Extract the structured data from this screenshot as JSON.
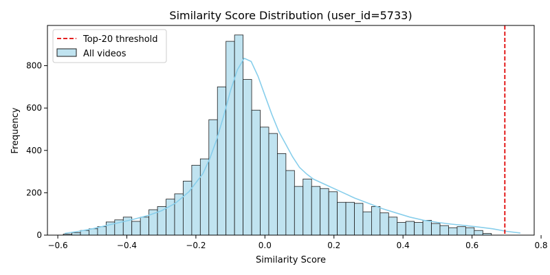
{
  "chart_data": {
    "type": "bar",
    "title": "Similarity Score Distribution (user_id=5733)",
    "xlabel": "Similarity Score",
    "ylabel": "Frequency",
    "xlim": [
      -0.63,
      0.78
    ],
    "ylim": [
      0,
      990
    ],
    "x_ticks": [
      -0.6,
      -0.4,
      -0.2,
      0.0,
      0.2,
      0.4,
      0.6,
      0.8
    ],
    "x_tick_labels": [
      "−0.6",
      "−0.4",
      "−0.2",
      "0.0",
      "0.2",
      "0.4",
      "0.6",
      "0.8"
    ],
    "y_ticks": [
      0,
      200,
      400,
      600,
      800
    ],
    "y_tick_labels": [
      "0",
      "200",
      "400",
      "600",
      "800"
    ],
    "bin_start": -0.584,
    "bin_width": 0.0248,
    "values": [
      5,
      12,
      22,
      30,
      40,
      62,
      72,
      85,
      65,
      85,
      120,
      135,
      170,
      195,
      255,
      330,
      360,
      545,
      700,
      915,
      945,
      735,
      590,
      510,
      480,
      385,
      305,
      230,
      265,
      230,
      220,
      205,
      155,
      155,
      150,
      110,
      135,
      105,
      85,
      60,
      65,
      60,
      70,
      55,
      45,
      35,
      40,
      35,
      22,
      8
    ],
    "kde": {
      "x": [
        -0.58,
        -0.54,
        -0.5,
        -0.46,
        -0.42,
        -0.38,
        -0.34,
        -0.3,
        -0.26,
        -0.22,
        -0.18,
        -0.16,
        -0.14,
        -0.12,
        -0.1,
        -0.08,
        -0.06,
        -0.04,
        -0.02,
        0.0,
        0.02,
        0.04,
        0.06,
        0.08,
        0.1,
        0.12,
        0.14,
        0.18,
        0.22,
        0.26,
        0.3,
        0.34,
        0.38,
        0.42,
        0.46,
        0.5,
        0.54,
        0.58,
        0.62,
        0.66,
        0.7,
        0.74
      ],
      "y": [
        8,
        18,
        30,
        45,
        60,
        75,
        92,
        115,
        150,
        205,
        290,
        360,
        450,
        560,
        680,
        780,
        835,
        820,
        750,
        660,
        570,
        490,
        430,
        370,
        320,
        290,
        265,
        235,
        205,
        175,
        150,
        125,
        105,
        85,
        70,
        60,
        52,
        45,
        38,
        30,
        18,
        10
      ]
    },
    "threshold": 0.695,
    "legend_position": "top-left",
    "series": [
      {
        "name": "Top-20 threshold",
        "kind": "vline"
      },
      {
        "name": "All videos",
        "kind": "histogram"
      }
    ],
    "colors": {
      "bar_fill": "#c0e3f0",
      "bar_stroke": "#1a1a1a",
      "kde": "#87ceeb",
      "threshold": "#e00000"
    },
    "grid": false
  }
}
